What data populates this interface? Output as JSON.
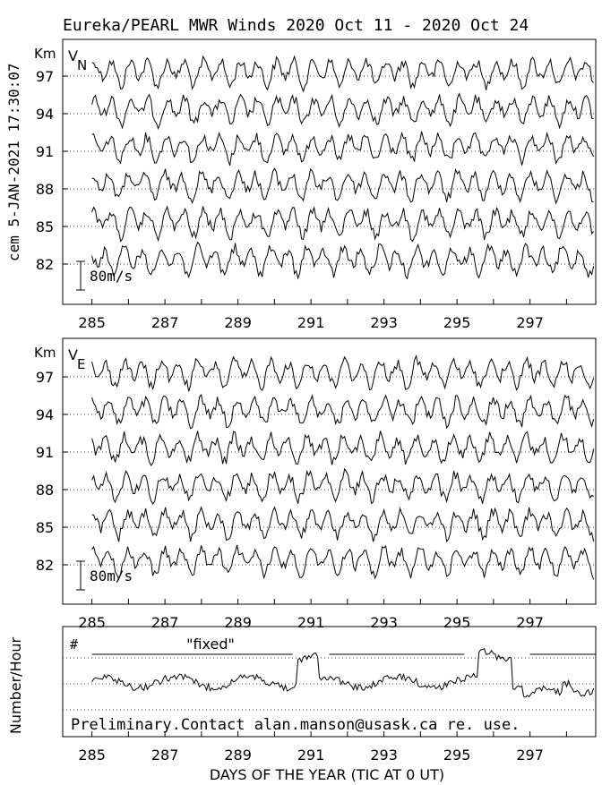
{
  "title": "Eureka/PEARL MWR Winds 2020 Oct 11 - 2020 Oct 24",
  "side_label": "cem 5-JAN-2021 17:30:07",
  "footer_note": "Preliminary.Contact alan.manson@usask.ca re. use.",
  "chart_data": [
    {
      "type": "line",
      "panel": "VN",
      "panel_label_main": "V",
      "panel_label_sub": "N",
      "ylabel": "Km",
      "altitudes": [
        97,
        94,
        91,
        88,
        85,
        82
      ],
      "scale_label": "80m/s",
      "x_ticks": [
        285,
        287,
        289,
        291,
        293,
        295,
        297
      ],
      "xlim": [
        284.2,
        298.8
      ],
      "data_start_day": 285.0,
      "series_note": "wind traces around each altitude baseline; amplitude approx ±40 m/s"
    },
    {
      "type": "line",
      "panel": "VE",
      "panel_label_main": "V",
      "panel_label_sub": "E",
      "ylabel": "Km",
      "altitudes": [
        97,
        94,
        91,
        88,
        85,
        82
      ],
      "scale_label": "80m/s",
      "x_ticks": [
        285,
        287,
        289,
        291,
        293,
        295,
        297
      ],
      "xlim": [
        284.2,
        298.8
      ]
    },
    {
      "type": "line",
      "panel": "count",
      "ylabel": "Number/Hour",
      "corner_label": "#",
      "fixed_label": "\"fixed\"",
      "x_ticks": [
        285,
        287,
        289,
        291,
        293,
        295,
        297
      ],
      "xlim": [
        284.2,
        298.8
      ],
      "xlabel": "DAYS OF THE YEAR (TIC AT 0 UT)",
      "fixed_segments": [
        [
          285.0,
          290.5
        ],
        [
          291.5,
          295.2
        ],
        [
          297.0,
          298.8
        ]
      ]
    }
  ]
}
